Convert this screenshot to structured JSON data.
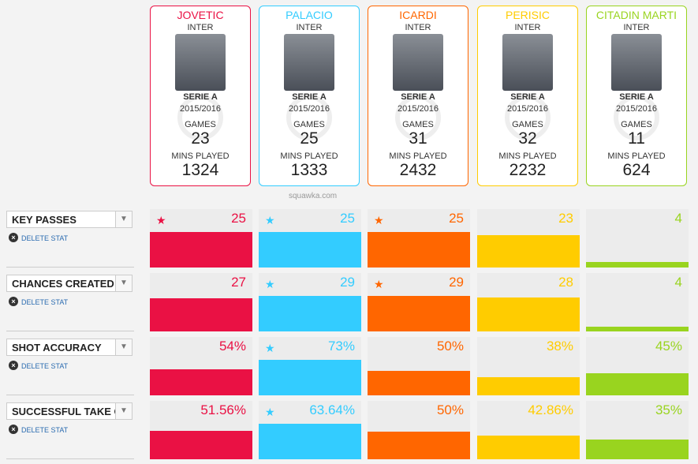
{
  "players": [
    {
      "name": "JOVETIC",
      "team": "INTER",
      "league": "SERIE A",
      "season": "2015/2016",
      "games": 23,
      "mins": 1324,
      "color": "#ea1144"
    },
    {
      "name": "PALACIO",
      "team": "INTER",
      "league": "SERIE A",
      "season": "2015/2016",
      "games": 25,
      "mins": 1333,
      "color": "#33ccff"
    },
    {
      "name": "ICARDI",
      "team": "INTER",
      "league": "SERIE A",
      "season": "2015/2016",
      "games": 31,
      "mins": 2432,
      "color": "#ff6600"
    },
    {
      "name": "PERISIC",
      "team": "INTER",
      "league": "SERIE A",
      "season": "2015/2016",
      "games": 32,
      "mins": 2232,
      "color": "#ffcc00"
    },
    {
      "name": "CITADIN MARTI",
      "team": "INTER",
      "league": "SERIE A",
      "season": "2015/2016",
      "games": 11,
      "mins": 624,
      "color": "#99d41f"
    }
  ],
  "labels": {
    "games": "GAMES",
    "mins": "MINS PLAYED",
    "source": "squawka.com",
    "delete": "DELETE STAT"
  },
  "stats": [
    {
      "name": "KEY PASSES",
      "values": [
        25,
        25,
        25,
        23,
        4
      ],
      "stars": [
        true,
        true,
        true,
        false,
        false
      ]
    },
    {
      "name": "CHANCES CREATED",
      "values": [
        27,
        29,
        29,
        28,
        4
      ],
      "stars": [
        false,
        true,
        true,
        false,
        false
      ]
    },
    {
      "name": "SHOT ACCURACY",
      "values": [
        54,
        73,
        50,
        38,
        45
      ],
      "value_labels": [
        "54%",
        "73%",
        "50%",
        "38%",
        "45%"
      ],
      "stars": [
        false,
        true,
        false,
        false,
        false
      ]
    },
    {
      "name": "SUCCESSFUL TAKE O",
      "values": [
        51.56,
        63.64,
        50,
        42.86,
        35
      ],
      "value_labels": [
        "51.56%",
        "63.64%",
        "50%",
        "42.86%",
        "35%"
      ],
      "stars": [
        false,
        true,
        false,
        false,
        false
      ]
    }
  ]
}
